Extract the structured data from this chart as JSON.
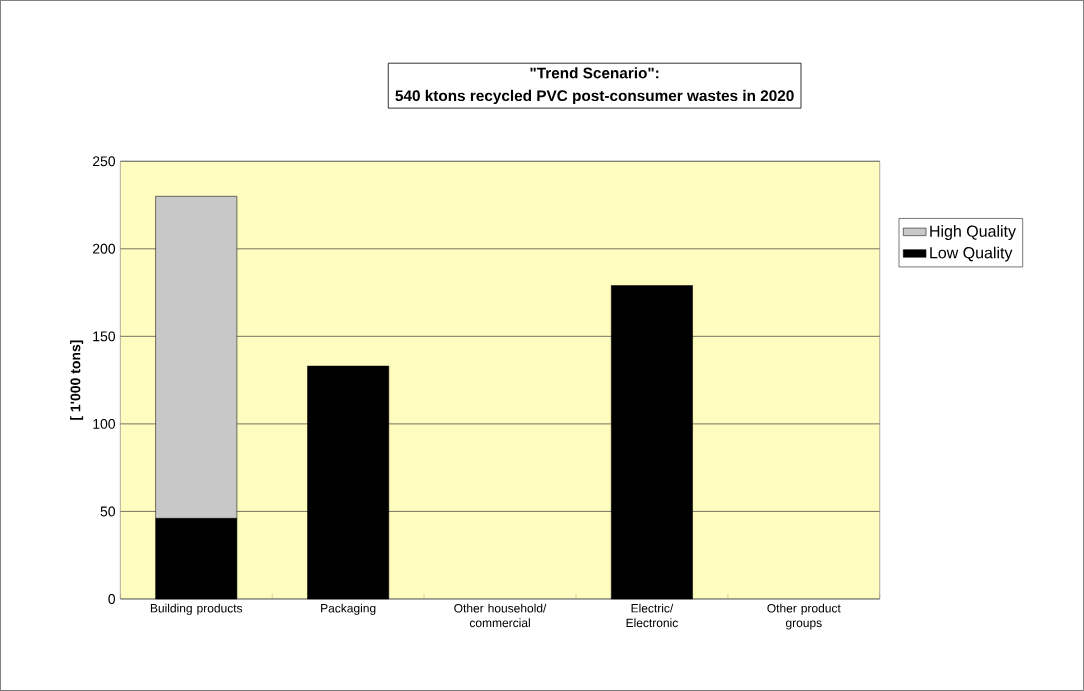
{
  "chart_data": {
    "type": "bar",
    "title": "\"Trend Scenario\":",
    "subtitle": "540 ktons recycled PVC post-consumer wastes in 2020",
    "ylabel": "[ 1'000 tons]",
    "categories": [
      "Building products",
      "Packaging",
      "Other household/ commercial",
      "Electric/ Electronic",
      "Other product groups"
    ],
    "stacked": true,
    "series": [
      {
        "name": "Low Quality",
        "color": "#000000",
        "values": [
          46,
          133,
          0,
          179,
          0
        ]
      },
      {
        "name": "High Quality",
        "color": "#c8c8c8",
        "values": [
          184,
          0,
          0,
          0,
          0
        ]
      }
    ],
    "ylim": [
      0,
      250
    ],
    "yticks": [
      0,
      50,
      100,
      150,
      200,
      250
    ],
    "grid": "y",
    "legend": "right"
  }
}
